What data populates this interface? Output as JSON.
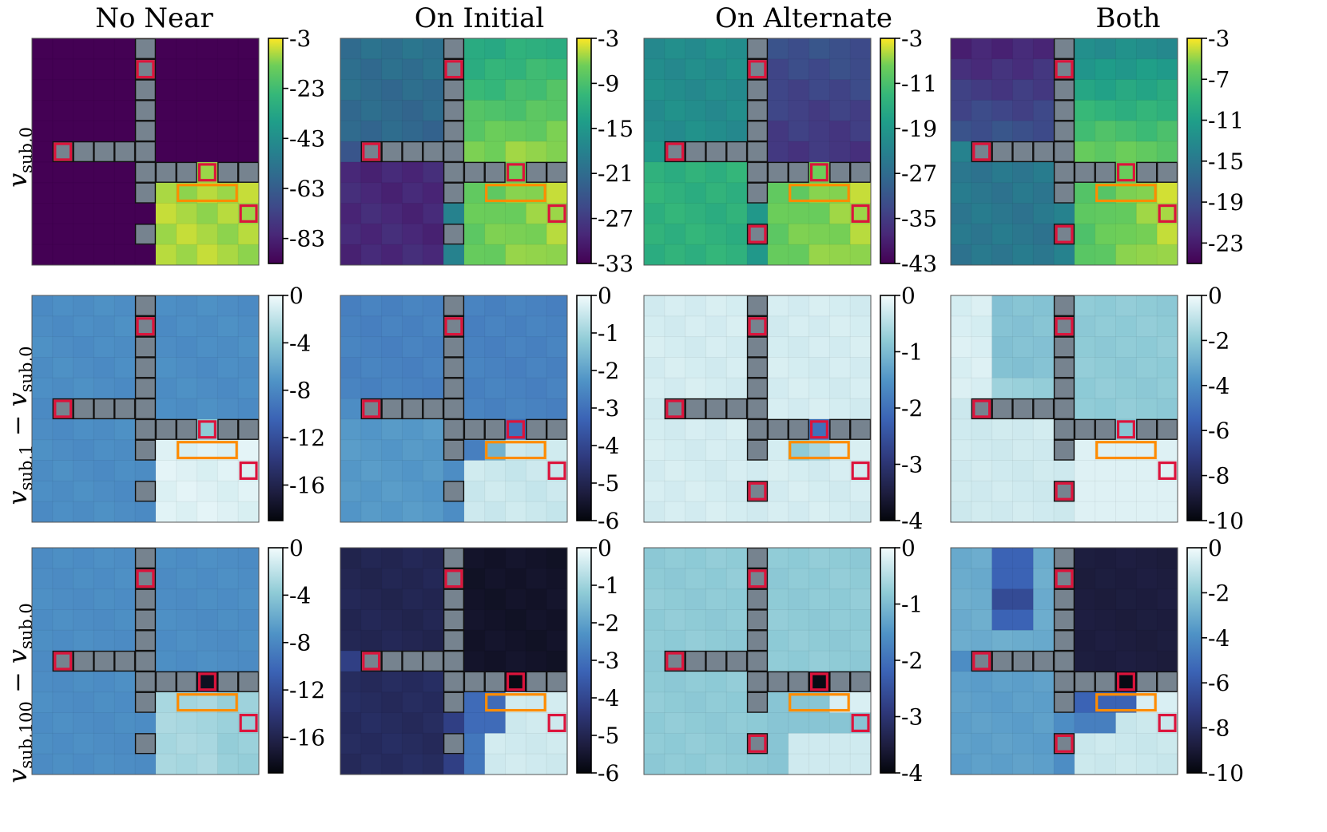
{
  "figure": {
    "column_titles": [
      "No Near",
      "On Initial",
      "On Alternate",
      "Both"
    ],
    "row_labels": [
      {
        "main": "v",
        "sub": "sub,0",
        "minus": "",
        "main2": "",
        "sub2": ""
      },
      {
        "main": "v",
        "sub": "sub,1",
        "minus": " − ",
        "main2": "v",
        "sub2": "sub,0"
      },
      {
        "main": "v",
        "sub": "sub,100",
        "minus": " − ",
        "main2": "v",
        "sub2": "sub,0"
      }
    ]
  },
  "chart_data": {
    "type": "heatmap",
    "grid_size": 11,
    "layout": "gridworld four-room heatmaps: 3 rows × 4 columns, each with colorbar",
    "panels": [
      {
        "row": 0,
        "col": 0,
        "title": "No Near",
        "colormap": "viridis",
        "vmin": -93,
        "vmax": -3,
        "ticks": [
          "-3",
          "-23",
          "-43",
          "-63",
          "-83"
        ],
        "tick_values": [
          -3,
          -23,
          -43,
          -63,
          -83
        ],
        "pattern": "r0_nonear"
      },
      {
        "row": 0,
        "col": 1,
        "title": "On Initial",
        "colormap": "viridis",
        "vmin": -33,
        "vmax": -3,
        "ticks": [
          "-3",
          "-9",
          "-15",
          "-21",
          "-27",
          "-33"
        ],
        "tick_values": [
          -3,
          -9,
          -15,
          -21,
          -27,
          -33
        ],
        "pattern": "r0_initial"
      },
      {
        "row": 0,
        "col": 2,
        "title": "On Alternate",
        "colormap": "viridis",
        "vmin": -43,
        "vmax": -3,
        "ticks": [
          "-3",
          "-11",
          "-19",
          "-27",
          "-35",
          "-43"
        ],
        "tick_values": [
          -3,
          -11,
          -19,
          -27,
          -35,
          -43
        ],
        "pattern": "r0_alternate"
      },
      {
        "row": 0,
        "col": 3,
        "title": "Both",
        "colormap": "viridis",
        "vmin": -25,
        "vmax": -3,
        "ticks": [
          "-3",
          "-7",
          "-11",
          "-15",
          "-19",
          "-23"
        ],
        "tick_values": [
          -3,
          -7,
          -11,
          -15,
          -19,
          -23
        ],
        "pattern": "r0_both"
      },
      {
        "row": 1,
        "col": 0,
        "title": "No Near",
        "colormap": "ice",
        "vmin": -19,
        "vmax": 0,
        "ticks": [
          "0",
          "-4",
          "-8",
          "-12",
          "-16"
        ],
        "tick_values": [
          0,
          -4,
          -8,
          -12,
          -16
        ],
        "pattern": "r1_nonear"
      },
      {
        "row": 1,
        "col": 1,
        "title": "On Initial",
        "colormap": "ice",
        "vmin": -6,
        "vmax": 0,
        "ticks": [
          "0",
          "-1",
          "-2",
          "-3",
          "-4",
          "-5",
          "-6"
        ],
        "tick_values": [
          0,
          -1,
          -2,
          -3,
          -4,
          -5,
          -6
        ],
        "pattern": "r1_initial"
      },
      {
        "row": 1,
        "col": 2,
        "title": "On Alternate",
        "colormap": "ice",
        "vmin": -4,
        "vmax": 0,
        "ticks": [
          "0",
          "-1",
          "-2",
          "-3",
          "-4"
        ],
        "tick_values": [
          0,
          -1,
          -2,
          -3,
          -4
        ],
        "pattern": "r1_alternate"
      },
      {
        "row": 1,
        "col": 3,
        "title": "Both",
        "colormap": "ice",
        "vmin": -10,
        "vmax": 0,
        "ticks": [
          "0",
          "-2",
          "-4",
          "-6",
          "-8",
          "-10"
        ],
        "tick_values": [
          0,
          -2,
          -4,
          -6,
          -8,
          -10
        ],
        "pattern": "r1_both"
      },
      {
        "row": 2,
        "col": 0,
        "title": "No Near",
        "colormap": "ice",
        "vmin": -19,
        "vmax": 0,
        "ticks": [
          "0",
          "-4",
          "-8",
          "-12",
          "-16"
        ],
        "tick_values": [
          0,
          -4,
          -8,
          -12,
          -16
        ],
        "pattern": "r2_nonear"
      },
      {
        "row": 2,
        "col": 1,
        "title": "On Initial",
        "colormap": "ice",
        "vmin": -6,
        "vmax": 0,
        "ticks": [
          "0",
          "-1",
          "-2",
          "-3",
          "-4",
          "-5",
          "-6"
        ],
        "tick_values": [
          0,
          -1,
          -2,
          -3,
          -4,
          -5,
          -6
        ],
        "pattern": "r2_initial"
      },
      {
        "row": 2,
        "col": 2,
        "title": "On Alternate",
        "colormap": "ice",
        "vmin": -4,
        "vmax": 0,
        "ticks": [
          "0",
          "-1",
          "-2",
          "-3",
          "-4"
        ],
        "tick_values": [
          0,
          -1,
          -2,
          -3,
          -4
        ],
        "pattern": "r2_alternate"
      },
      {
        "row": 2,
        "col": 3,
        "title": "Both",
        "colormap": "ice",
        "vmin": -10,
        "vmax": 0,
        "ticks": [
          "0",
          "-2",
          "-4",
          "-6",
          "-8",
          "-10"
        ],
        "tick_values": [
          0,
          -2,
          -4,
          -6,
          -8,
          -10
        ],
        "pattern": "r2_both"
      }
    ],
    "colors": {
      "wall": "#76838f",
      "wall_edge": "#111111",
      "marker_red": "#dc143c",
      "marker_orange": "#ff8c00"
    }
  }
}
